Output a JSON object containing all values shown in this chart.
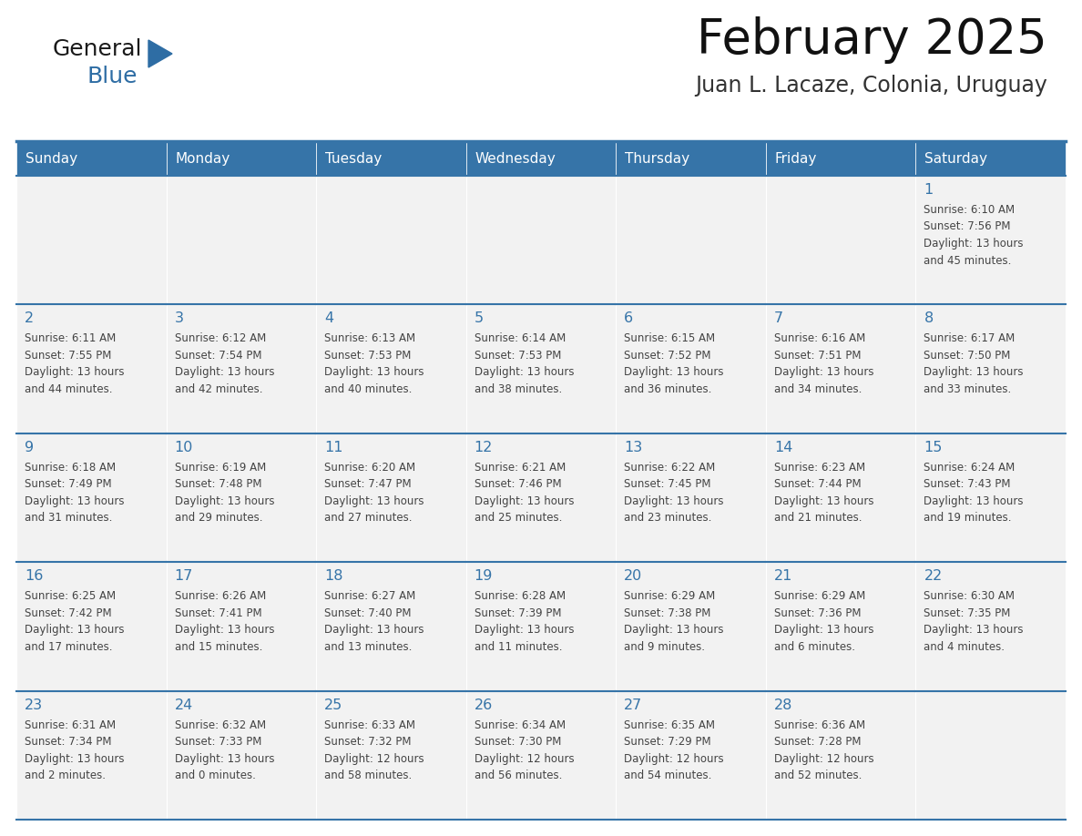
{
  "title": "February 2025",
  "subtitle": "Juan L. Lacaze, Colonia, Uruguay",
  "days_of_week": [
    "Sunday",
    "Monday",
    "Tuesday",
    "Wednesday",
    "Thursday",
    "Friday",
    "Saturday"
  ],
  "header_bg": "#3674a8",
  "header_text": "#FFFFFF",
  "cell_bg_odd": "#F2F2F2",
  "cell_bg_even": "#FFFFFF",
  "cell_border": "#3674a8",
  "day_num_color": "#3674a8",
  "info_color": "#444444",
  "title_color": "#111111",
  "subtitle_color": "#333333",
  "weeks": [
    [
      {
        "day": null,
        "info": ""
      },
      {
        "day": null,
        "info": ""
      },
      {
        "day": null,
        "info": ""
      },
      {
        "day": null,
        "info": ""
      },
      {
        "day": null,
        "info": ""
      },
      {
        "day": null,
        "info": ""
      },
      {
        "day": 1,
        "info": "Sunrise: 6:10 AM\nSunset: 7:56 PM\nDaylight: 13 hours\nand 45 minutes."
      }
    ],
    [
      {
        "day": 2,
        "info": "Sunrise: 6:11 AM\nSunset: 7:55 PM\nDaylight: 13 hours\nand 44 minutes."
      },
      {
        "day": 3,
        "info": "Sunrise: 6:12 AM\nSunset: 7:54 PM\nDaylight: 13 hours\nand 42 minutes."
      },
      {
        "day": 4,
        "info": "Sunrise: 6:13 AM\nSunset: 7:53 PM\nDaylight: 13 hours\nand 40 minutes."
      },
      {
        "day": 5,
        "info": "Sunrise: 6:14 AM\nSunset: 7:53 PM\nDaylight: 13 hours\nand 38 minutes."
      },
      {
        "day": 6,
        "info": "Sunrise: 6:15 AM\nSunset: 7:52 PM\nDaylight: 13 hours\nand 36 minutes."
      },
      {
        "day": 7,
        "info": "Sunrise: 6:16 AM\nSunset: 7:51 PM\nDaylight: 13 hours\nand 34 minutes."
      },
      {
        "day": 8,
        "info": "Sunrise: 6:17 AM\nSunset: 7:50 PM\nDaylight: 13 hours\nand 33 minutes."
      }
    ],
    [
      {
        "day": 9,
        "info": "Sunrise: 6:18 AM\nSunset: 7:49 PM\nDaylight: 13 hours\nand 31 minutes."
      },
      {
        "day": 10,
        "info": "Sunrise: 6:19 AM\nSunset: 7:48 PM\nDaylight: 13 hours\nand 29 minutes."
      },
      {
        "day": 11,
        "info": "Sunrise: 6:20 AM\nSunset: 7:47 PM\nDaylight: 13 hours\nand 27 minutes."
      },
      {
        "day": 12,
        "info": "Sunrise: 6:21 AM\nSunset: 7:46 PM\nDaylight: 13 hours\nand 25 minutes."
      },
      {
        "day": 13,
        "info": "Sunrise: 6:22 AM\nSunset: 7:45 PM\nDaylight: 13 hours\nand 23 minutes."
      },
      {
        "day": 14,
        "info": "Sunrise: 6:23 AM\nSunset: 7:44 PM\nDaylight: 13 hours\nand 21 minutes."
      },
      {
        "day": 15,
        "info": "Sunrise: 6:24 AM\nSunset: 7:43 PM\nDaylight: 13 hours\nand 19 minutes."
      }
    ],
    [
      {
        "day": 16,
        "info": "Sunrise: 6:25 AM\nSunset: 7:42 PM\nDaylight: 13 hours\nand 17 minutes."
      },
      {
        "day": 17,
        "info": "Sunrise: 6:26 AM\nSunset: 7:41 PM\nDaylight: 13 hours\nand 15 minutes."
      },
      {
        "day": 18,
        "info": "Sunrise: 6:27 AM\nSunset: 7:40 PM\nDaylight: 13 hours\nand 13 minutes."
      },
      {
        "day": 19,
        "info": "Sunrise: 6:28 AM\nSunset: 7:39 PM\nDaylight: 13 hours\nand 11 minutes."
      },
      {
        "day": 20,
        "info": "Sunrise: 6:29 AM\nSunset: 7:38 PM\nDaylight: 13 hours\nand 9 minutes."
      },
      {
        "day": 21,
        "info": "Sunrise: 6:29 AM\nSunset: 7:36 PM\nDaylight: 13 hours\nand 6 minutes."
      },
      {
        "day": 22,
        "info": "Sunrise: 6:30 AM\nSunset: 7:35 PM\nDaylight: 13 hours\nand 4 minutes."
      }
    ],
    [
      {
        "day": 23,
        "info": "Sunrise: 6:31 AM\nSunset: 7:34 PM\nDaylight: 13 hours\nand 2 minutes."
      },
      {
        "day": 24,
        "info": "Sunrise: 6:32 AM\nSunset: 7:33 PM\nDaylight: 13 hours\nand 0 minutes."
      },
      {
        "day": 25,
        "info": "Sunrise: 6:33 AM\nSunset: 7:32 PM\nDaylight: 12 hours\nand 58 minutes."
      },
      {
        "day": 26,
        "info": "Sunrise: 6:34 AM\nSunset: 7:30 PM\nDaylight: 12 hours\nand 56 minutes."
      },
      {
        "day": 27,
        "info": "Sunrise: 6:35 AM\nSunset: 7:29 PM\nDaylight: 12 hours\nand 54 minutes."
      },
      {
        "day": 28,
        "info": "Sunrise: 6:36 AM\nSunset: 7:28 PM\nDaylight: 12 hours\nand 52 minutes."
      },
      {
        "day": null,
        "info": ""
      }
    ]
  ],
  "logo_general_color": "#1a1a1a",
  "logo_blue_color": "#2E6DA4",
  "logo_triangle_color": "#2E6DA4",
  "fig_width": 11.88,
  "fig_height": 9.18,
  "dpi": 100
}
